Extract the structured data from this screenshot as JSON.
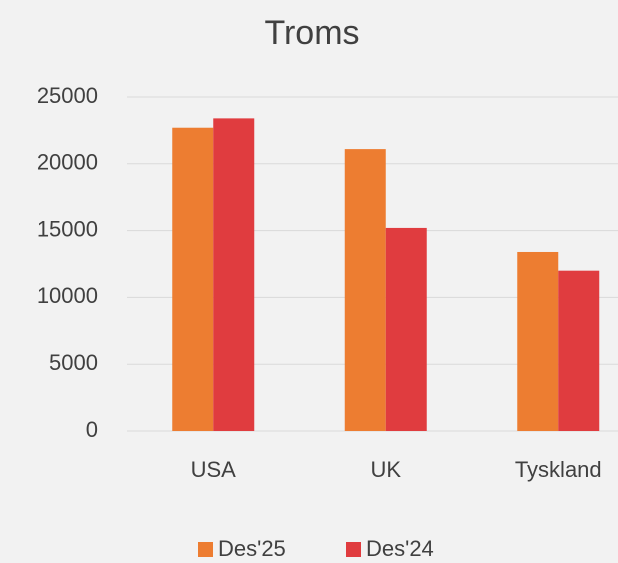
{
  "chart_data": {
    "type": "bar",
    "title": "Troms",
    "categories": [
      "USA",
      "UK",
      "Tyskland"
    ],
    "series": [
      {
        "name": "Des'25",
        "color": "#ed7d31",
        "values": [
          22700,
          21100,
          13400
        ]
      },
      {
        "name": "Des'24",
        "color": "#e03c3f",
        "values": [
          23400,
          15200,
          12000
        ]
      }
    ],
    "ylim": [
      0,
      25000
    ],
    "yticks": [
      0,
      5000,
      10000,
      15000,
      20000,
      25000
    ],
    "grid": true,
    "legend": "bottom"
  }
}
